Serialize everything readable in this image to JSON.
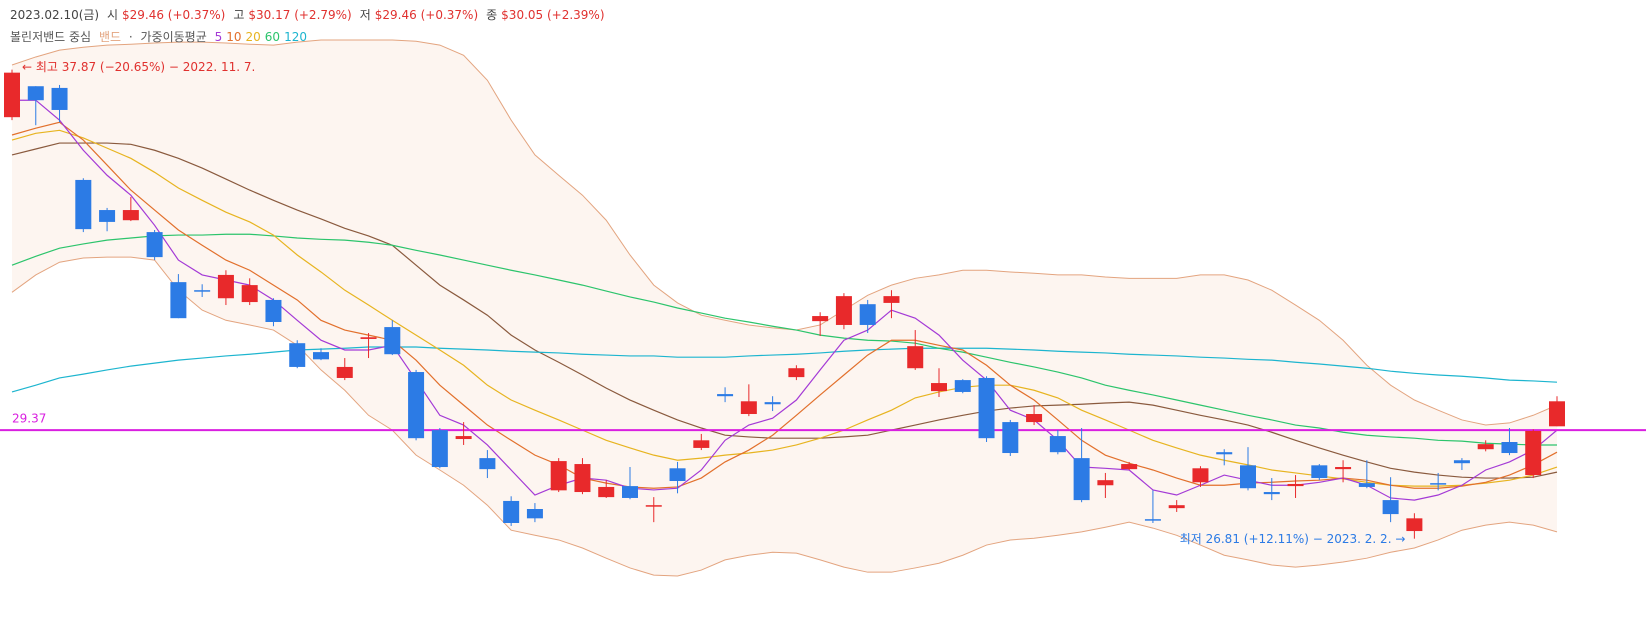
{
  "chart_data": {
    "type": "candlestick",
    "header": {
      "date": "2023.02.10(금)",
      "fields": [
        {
          "label": "시",
          "value": "$29.46 (+0.37%)"
        },
        {
          "label": "고",
          "value": "$30.17 (+2.79%)"
        },
        {
          "label": "저",
          "value": "$29.46 (+0.37%)"
        },
        {
          "label": "종",
          "value": "$30.05 (+2.39%)"
        }
      ]
    },
    "up_color": "#e8292b",
    "down_color": "#2c7be5",
    "candles": {
      "open": [
        36.75,
        37.48,
        37.44,
        35.27,
        34.56,
        34.32,
        34.04,
        32.86,
        32.67,
        32.48,
        32.39,
        32.44,
        31.42,
        31.21,
        30.6,
        31.52,
        31.8,
        30.74,
        29.37,
        29.16,
        28.71,
        27.7,
        27.51,
        27.95,
        27.91,
        27.79,
        28.05,
        27.58,
        28.47,
        28.95,
        30.22,
        29.75,
        30.03,
        30.62,
        31.94,
        31.85,
        32.34,
        32.37,
        30.83,
        30.29,
        30.55,
        30.6,
        29.56,
        29.56,
        29.23,
        28.71,
        28.07,
        28.45,
        27.27,
        27.53,
        28.14,
        28.85,
        28.54,
        27.91,
        28.05,
        28.54,
        28.45,
        28.12,
        27.72,
        26.99,
        28.12,
        28.66,
        28.92,
        29.09,
        28.31,
        29.46
      ],
      "high": [
        37.87,
        37.48,
        37.51,
        35.31,
        34.61,
        34.87,
        34.09,
        33.05,
        32.81,
        33.14,
        32.95,
        32.48,
        31.49,
        31.3,
        31.07,
        31.66,
        31.96,
        30.79,
        29.42,
        29.56,
        28.9,
        27.81,
        27.65,
        28.71,
        28.71,
        28.19,
        28.5,
        27.79,
        28.62,
        29.28,
        30.38,
        30.45,
        30.17,
        30.9,
        32.15,
        32.6,
        32.44,
        32.67,
        31.73,
        30.83,
        30.57,
        30.64,
        29.61,
        29.96,
        29.37,
        29.42,
        28.36,
        28.62,
        27.95,
        27.72,
        28.52,
        28.92,
        28.97,
        28.24,
        28.31,
        28.57,
        28.66,
        28.66,
        28.26,
        27.41,
        28.36,
        28.71,
        29.13,
        29.42,
        29.39,
        30.17
      ],
      "low": [
        36.68,
        36.56,
        36.63,
        34.04,
        34.06,
        34.3,
        33.38,
        32.01,
        32.51,
        32.32,
        32.32,
        31.82,
        30.83,
        31.02,
        30.55,
        31.07,
        31.14,
        29.13,
        28.47,
        29.02,
        28.24,
        27.11,
        27.2,
        27.91,
        27.86,
        27.77,
        27.74,
        27.2,
        27.88,
        28.9,
        30.03,
        29.7,
        29.82,
        30.55,
        31.59,
        31.75,
        31.66,
        32.01,
        30.79,
        30.15,
        30.24,
        29.09,
        28.76,
        29.49,
        28.8,
        27.67,
        27.77,
        28.43,
        27.18,
        27.44,
        28.03,
        28.54,
        27.95,
        27.72,
        27.77,
        28.19,
        28.14,
        28.0,
        27.2,
        26.81,
        27.95,
        28.43,
        28.87,
        28.78,
        28.24,
        29.46
      ],
      "close": [
        37.8,
        37.15,
        36.92,
        34.11,
        34.28,
        34.56,
        33.45,
        32.01,
        32.65,
        33.03,
        32.79,
        31.92,
        30.86,
        31.04,
        30.86,
        31.56,
        31.16,
        29.18,
        28.5,
        29.23,
        28.45,
        27.18,
        27.29,
        28.64,
        28.57,
        28.03,
        27.77,
        27.6,
        28.17,
        29.13,
        30.17,
        30.05,
        29.98,
        30.83,
        32.06,
        32.53,
        31.85,
        32.53,
        31.35,
        30.48,
        30.27,
        29.18,
        28.83,
        29.75,
        28.85,
        27.72,
        28.19,
        28.57,
        27.25,
        27.6,
        28.47,
        28.8,
        28.0,
        27.86,
        28.1,
        28.24,
        28.5,
        28.03,
        27.39,
        27.29,
        28.1,
        28.59,
        29.04,
        28.83,
        29.35,
        30.05
      ]
    },
    "bollinger": {
      "name": "볼린저밴드 중심",
      "band_name": "밴드",
      "color": "#8a5a3e",
      "band_color": "#e3a47f",
      "band_fill": "#fdf5f0",
      "center": [
        35.86,
        36.0,
        36.14,
        36.14,
        36.14,
        36.11,
        35.97,
        35.78,
        35.55,
        35.29,
        35.03,
        34.79,
        34.56,
        34.35,
        34.13,
        33.95,
        33.73,
        33.26,
        32.79,
        32.44,
        32.08,
        31.61,
        31.26,
        30.97,
        30.67,
        30.36,
        30.08,
        29.84,
        29.61,
        29.42,
        29.25,
        29.21,
        29.18,
        29.18,
        29.18,
        29.21,
        29.25,
        29.37,
        29.49,
        29.61,
        29.72,
        29.82,
        29.89,
        29.94,
        29.96,
        29.98,
        30.01,
        30.03,
        29.96,
        29.84,
        29.72,
        29.61,
        29.49,
        29.32,
        29.13,
        28.95,
        28.78,
        28.62,
        28.47,
        28.38,
        28.31,
        28.26,
        28.24,
        28.24,
        28.26,
        28.38
      ],
      "upper": [
        37.98,
        38.17,
        38.33,
        38.4,
        38.45,
        38.47,
        38.5,
        38.52,
        38.52,
        38.5,
        38.47,
        38.45,
        38.52,
        38.57,
        38.57,
        38.57,
        38.57,
        38.54,
        38.45,
        38.21,
        37.62,
        36.68,
        35.86,
        35.38,
        34.91,
        34.32,
        33.5,
        32.79,
        32.37,
        32.08,
        31.96,
        31.85,
        31.78,
        31.73,
        31.85,
        32.2,
        32.55,
        32.79,
        32.95,
        33.03,
        33.14,
        33.14,
        33.1,
        33.07,
        33.03,
        33.03,
        32.98,
        32.95,
        32.95,
        32.95,
        33.03,
        33.03,
        32.91,
        32.67,
        32.32,
        31.96,
        31.49,
        30.9,
        30.43,
        30.08,
        29.84,
        29.61,
        29.49,
        29.54,
        29.72,
        29.96
      ],
      "lower": [
        32.62,
        33.03,
        33.33,
        33.43,
        33.45,
        33.45,
        33.38,
        32.67,
        32.2,
        31.96,
        31.85,
        31.73,
        31.37,
        30.79,
        30.31,
        29.72,
        29.37,
        28.78,
        28.43,
        28.07,
        27.6,
        27.01,
        26.89,
        26.78,
        26.59,
        26.35,
        26.12,
        25.95,
        25.93,
        26.07,
        26.31,
        26.42,
        26.49,
        26.47,
        26.31,
        26.14,
        26.02,
        26.02,
        26.12,
        26.23,
        26.42,
        26.66,
        26.78,
        26.82,
        26.89,
        26.97,
        27.08,
        27.2,
        27.06,
        26.89,
        26.66,
        26.42,
        26.31,
        26.19,
        26.14,
        26.19,
        26.26,
        26.35,
        26.49,
        26.59,
        26.78,
        27.01,
        27.13,
        27.2,
        27.13,
        26.97
      ]
    },
    "separator": "·",
    "wma": {
      "name": "가중이동평균",
      "series": [
        {
          "name": "5",
          "color": "#a43ad6",
          "values": [
            37.15,
            37.15,
            36.68,
            35.97,
            35.38,
            34.91,
            34.2,
            33.38,
            33.03,
            32.91,
            32.79,
            32.44,
            31.96,
            31.49,
            31.26,
            31.26,
            31.37,
            30.55,
            29.72,
            29.49,
            29.02,
            28.43,
            27.84,
            28.07,
            28.24,
            28.19,
            28.0,
            27.96,
            28.0,
            28.43,
            29.13,
            29.49,
            29.65,
            30.08,
            30.79,
            31.49,
            31.73,
            32.2,
            32.01,
            31.61,
            31.02,
            30.55,
            29.84,
            29.61,
            29.13,
            28.5,
            28.47,
            28.43,
            27.96,
            27.84,
            28.07,
            28.31,
            28.19,
            28.07,
            28.07,
            28.14,
            28.24,
            28.07,
            27.77,
            27.72,
            27.84,
            28.07,
            28.43,
            28.62,
            28.9,
            29.37
          ]
        },
        {
          "name": "10",
          "color": "#e2702c",
          "values": [
            36.33,
            36.49,
            36.63,
            36.21,
            35.62,
            35.03,
            34.56,
            34.09,
            33.73,
            33.38,
            33.14,
            32.79,
            32.44,
            31.96,
            31.73,
            31.61,
            31.49,
            31.02,
            30.43,
            29.96,
            29.49,
            29.13,
            28.78,
            28.55,
            28.24,
            28.12,
            28.03,
            28.0,
            28.03,
            28.24,
            28.62,
            28.9,
            29.25,
            29.72,
            30.2,
            30.67,
            31.14,
            31.49,
            31.49,
            31.37,
            31.26,
            30.9,
            30.43,
            30.08,
            29.61,
            29.13,
            28.78,
            28.59,
            28.43,
            28.24,
            28.07,
            28.07,
            28.12,
            28.14,
            28.17,
            28.19,
            28.24,
            28.19,
            28.07,
            28.0,
            28.0,
            28.05,
            28.14,
            28.31,
            28.55,
            28.85
          ]
        },
        {
          "name": "20",
          "color": "#e7b420",
          "values": [
            36.21,
            36.37,
            36.44,
            36.26,
            36.02,
            35.78,
            35.45,
            35.08,
            34.79,
            34.51,
            34.28,
            33.97,
            33.5,
            33.1,
            32.67,
            32.32,
            31.96,
            31.61,
            31.26,
            30.9,
            30.43,
            30.08,
            29.84,
            29.61,
            29.37,
            29.13,
            28.95,
            28.78,
            28.66,
            28.71,
            28.78,
            28.83,
            28.9,
            29.02,
            29.18,
            29.37,
            29.61,
            29.84,
            30.13,
            30.27,
            30.38,
            30.43,
            30.43,
            30.31,
            30.13,
            29.84,
            29.61,
            29.37,
            29.13,
            28.95,
            28.78,
            28.66,
            28.55,
            28.43,
            28.36,
            28.29,
            28.22,
            28.14,
            28.07,
            28.05,
            28.05,
            28.07,
            28.12,
            28.19,
            28.31,
            28.5
          ]
        },
        {
          "name": "60",
          "color": "#2cc46c",
          "values": [
            33.26,
            33.47,
            33.66,
            33.76,
            33.85,
            33.9,
            33.95,
            33.97,
            33.97,
            33.99,
            33.99,
            33.95,
            33.9,
            33.87,
            33.85,
            33.8,
            33.73,
            33.61,
            33.5,
            33.38,
            33.26,
            33.14,
            33.03,
            32.91,
            32.79,
            32.65,
            32.51,
            32.39,
            32.25,
            32.13,
            32.01,
            31.92,
            31.82,
            31.73,
            31.61,
            31.54,
            31.49,
            31.47,
            31.42,
            31.3,
            31.21,
            31.09,
            30.97,
            30.86,
            30.74,
            30.6,
            30.43,
            30.31,
            30.2,
            30.08,
            29.96,
            29.84,
            29.72,
            29.61,
            29.49,
            29.42,
            29.32,
            29.25,
            29.21,
            29.18,
            29.13,
            29.11,
            29.06,
            29.04,
            29.02,
            29.02
          ]
        },
        {
          "name": "120",
          "color": "#1db5cf",
          "values": [
            30.27,
            30.43,
            30.6,
            30.69,
            30.79,
            30.88,
            30.95,
            31.02,
            31.07,
            31.12,
            31.16,
            31.21,
            31.26,
            31.28,
            31.3,
            31.33,
            31.33,
            31.33,
            31.3,
            31.28,
            31.26,
            31.23,
            31.21,
            31.19,
            31.16,
            31.14,
            31.12,
            31.12,
            31.09,
            31.09,
            31.09,
            31.12,
            31.14,
            31.16,
            31.19,
            31.23,
            31.26,
            31.28,
            31.3,
            31.3,
            31.3,
            31.3,
            31.28,
            31.26,
            31.23,
            31.21,
            31.19,
            31.16,
            31.14,
            31.12,
            31.09,
            31.07,
            31.04,
            31.02,
            30.97,
            30.93,
            30.88,
            30.83,
            30.76,
            30.71,
            30.67,
            30.64,
            30.6,
            30.55,
            30.53,
            30.5
          ]
        }
      ]
    },
    "price_line": {
      "value": 29.37,
      "color": "#d91fe0"
    },
    "annotations": {
      "high": {
        "text": "← 최고 37.87 (−20.65%) − 2022. 11. 7.",
        "color": "#e0312f"
      },
      "low": {
        "text": "최저 26.81 (+12.11%) − 2023. 2. 2. →",
        "color": "#2c7be5"
      }
    }
  }
}
